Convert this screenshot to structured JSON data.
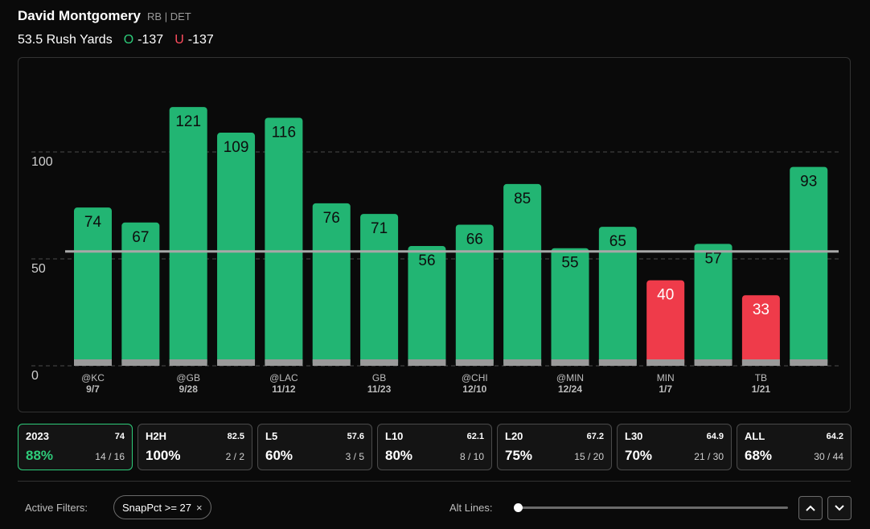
{
  "player": {
    "name": "David Montgomery",
    "meta": "RB | DET"
  },
  "prop": {
    "line_label": "53.5 Rush Yards",
    "over_letter": "O",
    "over_odds": "-137",
    "under_letter": "U",
    "under_odds": "-137"
  },
  "chart_data": {
    "type": "bar",
    "values": [
      74,
      67,
      121,
      109,
      116,
      76,
      71,
      56,
      66,
      85,
      55,
      65,
      40,
      57,
      33,
      93
    ],
    "line": 53.5,
    "ylim": [
      0,
      121
    ],
    "yticks": [
      0,
      50,
      100
    ],
    "x_labels": [
      {
        "index": 0,
        "opponent": "@KC",
        "date": "9/7"
      },
      {
        "index": 2,
        "opponent": "@GB",
        "date": "9/28"
      },
      {
        "index": 4,
        "opponent": "@LAC",
        "date": "11/12"
      },
      {
        "index": 6,
        "opponent": "GB",
        "date": "11/23"
      },
      {
        "index": 8,
        "opponent": "@CHI",
        "date": "12/10"
      },
      {
        "index": 10,
        "opponent": "@MIN",
        "date": "12/24"
      },
      {
        "index": 12,
        "opponent": "MIN",
        "date": "1/7"
      },
      {
        "index": 14,
        "opponent": "TB",
        "date": "1/21"
      }
    ],
    "colors": {
      "over": "#22b573",
      "under": "#ef3b4a",
      "base": "#9a9a9a",
      "line": "#a8a8a8",
      "grid": "#4a4a4a"
    },
    "grid": true
  },
  "stats": [
    {
      "label": "2023",
      "avg": "74",
      "pct": "88%",
      "count": "14 / 16",
      "active": true
    },
    {
      "label": "H2H",
      "avg": "82.5",
      "pct": "100%",
      "count": "2 / 2",
      "active": false
    },
    {
      "label": "L5",
      "avg": "57.6",
      "pct": "60%",
      "count": "3 / 5",
      "active": false
    },
    {
      "label": "L10",
      "avg": "62.1",
      "pct": "80%",
      "count": "8 / 10",
      "active": false
    },
    {
      "label": "L20",
      "avg": "67.2",
      "pct": "75%",
      "count": "15 / 20",
      "active": false
    },
    {
      "label": "L30",
      "avg": "64.9",
      "pct": "70%",
      "count": "21 / 30",
      "active": false
    },
    {
      "label": "ALL",
      "avg": "64.2",
      "pct": "68%",
      "count": "30 / 44",
      "active": false
    }
  ],
  "filters": {
    "label": "Active Filters:",
    "chips": [
      {
        "text": "SnapPct >= 27",
        "close": "×"
      }
    ]
  },
  "alt_lines": {
    "label": "Alt Lines:",
    "value_fraction": 0
  },
  "icons": {
    "close": "close-icon",
    "up": "chevron-up-icon",
    "down": "chevron-down-icon"
  }
}
